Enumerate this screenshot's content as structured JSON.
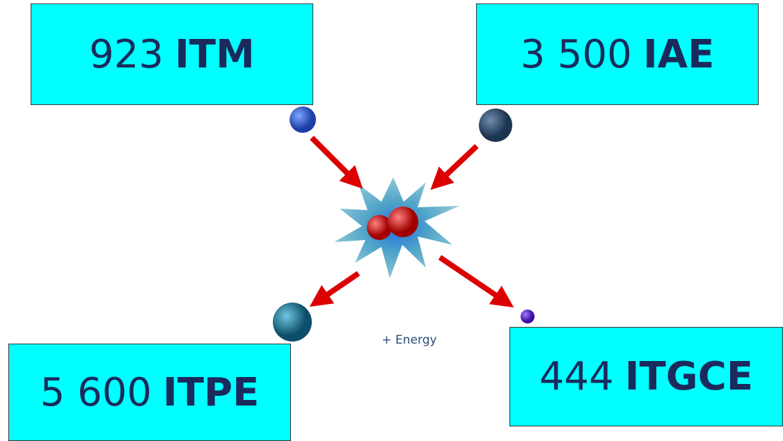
{
  "boxes": [
    {
      "number": "923",
      "label": "ITM"
    },
    {
      "number": "3 500",
      "label": "IAE"
    },
    {
      "number": "5 600",
      "label": "ITPE"
    },
    {
      "number": "444",
      "label": "ITGCE"
    }
  ],
  "energy_label": "+ Energy"
}
